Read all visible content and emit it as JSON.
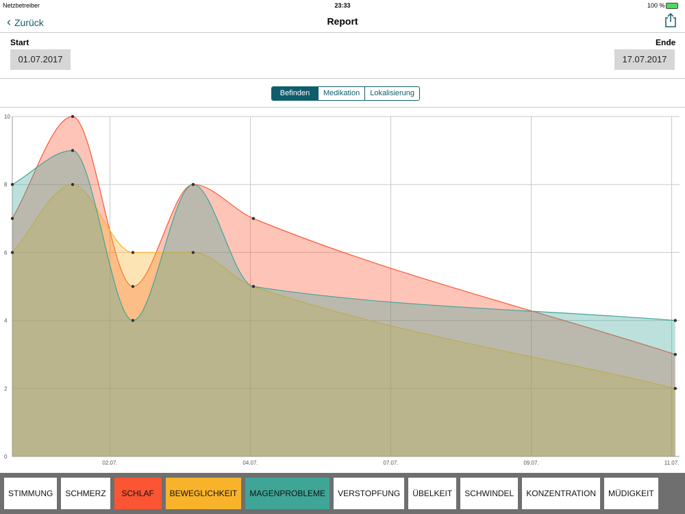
{
  "status": {
    "carrier": "Netzbetreiber",
    "time": "23:33",
    "battery": "100 %"
  },
  "nav": {
    "back": "Zurück",
    "title": "Report"
  },
  "range": {
    "start_label": "Start",
    "start": "01.07.2017",
    "end_label": "Ende",
    "end": "17.07.2017"
  },
  "tabs": [
    "Befinden",
    "Medikation",
    "Lokalisierung"
  ],
  "filters_before": [
    "STIMMUNG",
    "SCHMERZ"
  ],
  "filters_after": [
    "VERSTOPFUNG",
    "ÜBELKEIT",
    "SCHWINDEL",
    "KONZENTRATION",
    "MÜDIGKEIT"
  ],
  "chart_data": {
    "type": "area",
    "x": [
      0,
      1,
      2,
      3,
      4,
      11
    ],
    "xlim": [
      0,
      11.07
    ],
    "xticks": [
      {
        "value": 1.62,
        "label": "02.07."
      },
      {
        "value": 3.95,
        "label": "04.07."
      },
      {
        "value": 6.28,
        "label": "07.07."
      },
      {
        "value": 8.61,
        "label": "09.07."
      },
      {
        "value": 10.94,
        "label": "11.07."
      }
    ],
    "ylim": [
      0,
      10
    ],
    "yticks": [
      0,
      2,
      4,
      6,
      8,
      10
    ],
    "grid": true,
    "series": [
      {
        "name": "SCHLAF",
        "color": "#fb5533",
        "values": [
          7,
          10,
          5,
          8,
          7,
          3
        ]
      },
      {
        "name": "BEWEGLICHKEIT",
        "color": "#f9b32b",
        "values": [
          6,
          8,
          6,
          6,
          5,
          2
        ]
      },
      {
        "name": "MAGENPROBLEME",
        "color": "#3fa597",
        "values": [
          8,
          9,
          4,
          8,
          5,
          4
        ]
      }
    ]
  }
}
